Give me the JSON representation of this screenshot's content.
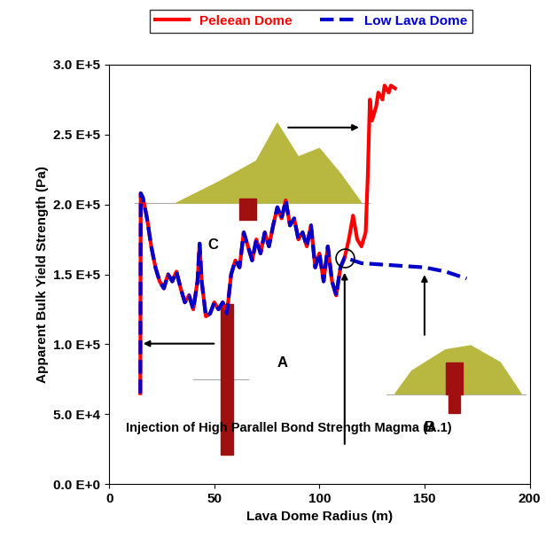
{
  "chart_data": {
    "type": "line",
    "xlabel": "Lava Dome Radius (m)",
    "ylabel": "Apparent Bulk Yield Strength (Pa)",
    "xlim": [
      0,
      200
    ],
    "xticks": [
      0,
      50,
      100,
      150,
      200
    ],
    "ylim": [
      0,
      300000
    ],
    "yticks": [
      {
        "value": 0,
        "label": "0.0 E+0"
      },
      {
        "value": 50000,
        "label": "5.0 E+4"
      },
      {
        "value": 100000,
        "label": "1.0 E+5"
      },
      {
        "value": 150000,
        "label": "1.5 E+5"
      },
      {
        "value": 200000,
        "label": "2.0 E+5"
      },
      {
        "value": 250000,
        "label": "2.5 E+5"
      },
      {
        "value": 300000,
        "label": "3.0 E+5"
      }
    ],
    "grid": false,
    "legend": "upper center",
    "annotations": [
      "A",
      "B",
      "C",
      "Injection of High Parallel Bond Strength Magma (A.1)"
    ],
    "series": [
      {
        "name": "Peleean Dome",
        "color": "#ff0000",
        "line_style": "solid",
        "x": [
          14.8,
          15,
          16,
          18,
          20,
          22,
          24,
          26,
          28,
          30,
          32,
          34,
          36,
          38,
          40,
          42,
          43,
          44,
          46,
          48,
          50,
          52,
          54,
          56,
          58,
          60,
          62,
          64,
          66,
          68,
          70,
          72,
          74,
          76,
          78,
          80,
          82,
          84,
          86,
          88,
          90,
          92,
          94,
          96,
          98,
          100,
          102,
          104,
          106,
          108,
          110,
          112,
          114,
          116,
          118,
          120,
          122,
          123,
          124,
          125,
          127,
          128,
          130,
          131,
          133,
          134,
          136
        ],
        "values": [
          65000,
          208000,
          205000,
          190000,
          170000,
          155000,
          145000,
          140000,
          150000,
          145000,
          152000,
          140000,
          130000,
          135000,
          125000,
          145000,
          172000,
          145000,
          120000,
          122000,
          130000,
          125000,
          130000,
          122000,
          150000,
          160000,
          155000,
          180000,
          170000,
          160000,
          175000,
          165000,
          180000,
          170000,
          185000,
          198000,
          190000,
          203000,
          185000,
          190000,
          175000,
          180000,
          170000,
          185000,
          155000,
          165000,
          145000,
          170000,
          145000,
          135000,
          155000,
          162000,
          175000,
          192000,
          175000,
          170000,
          180000,
          220000,
          275000,
          260000,
          270000,
          280000,
          275000,
          285000,
          280000,
          285000,
          283000
        ]
      },
      {
        "name": "Low Lava Dome",
        "color": "#0000cc",
        "line_style": "dashed",
        "x": [
          14.8,
          15,
          16,
          18,
          20,
          22,
          24,
          26,
          28,
          30,
          32,
          34,
          36,
          38,
          40,
          42,
          43,
          44,
          46,
          48,
          50,
          52,
          54,
          56,
          58,
          60,
          62,
          64,
          66,
          68,
          70,
          72,
          74,
          76,
          78,
          80,
          82,
          84,
          86,
          88,
          90,
          92,
          94,
          96,
          98,
          100,
          102,
          104,
          106,
          108,
          110,
          112,
          120,
          130,
          140,
          150,
          160,
          170
        ],
        "values": [
          65000,
          208000,
          205000,
          190000,
          170000,
          155000,
          145000,
          140000,
          150000,
          145000,
          152000,
          140000,
          130000,
          135000,
          125000,
          145000,
          172000,
          145000,
          120000,
          122000,
          130000,
          125000,
          130000,
          122000,
          150000,
          160000,
          155000,
          180000,
          170000,
          160000,
          175000,
          165000,
          180000,
          170000,
          185000,
          198000,
          190000,
          203000,
          185000,
          190000,
          175000,
          180000,
          170000,
          185000,
          155000,
          165000,
          145000,
          170000,
          145000,
          135000,
          155000,
          162000,
          158000,
          157000,
          156000,
          155000,
          152000,
          147000
        ]
      }
    ]
  }
}
